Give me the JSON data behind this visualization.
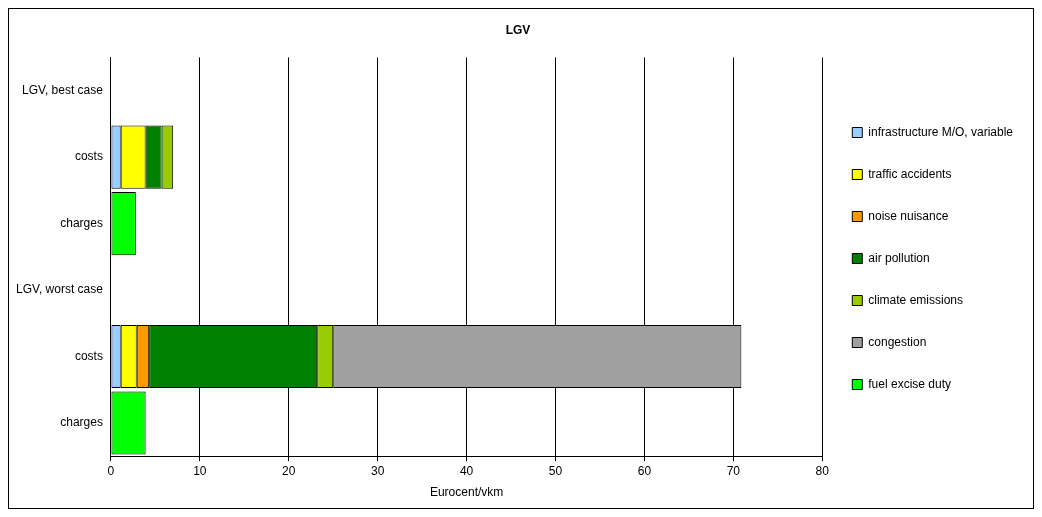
{
  "chart_data": {
    "type": "bar",
    "orientation": "horizontal",
    "stacked": true,
    "title": "LGV",
    "xlabel": "Eurocent/vkm",
    "categories": [
      "LGV, best case",
      "costs",
      "charges",
      "LGV, worst case",
      "costs",
      "charges"
    ],
    "series": [
      {
        "name": "infrastructure M/O, variable",
        "color": "#99ccff",
        "values": [
          null,
          1.1,
          null,
          null,
          1.1,
          null
        ]
      },
      {
        "name": "traffic accidents",
        "color": "#ffff00",
        "values": [
          null,
          2.8,
          null,
          null,
          1.8,
          null
        ]
      },
      {
        "name": "noise nuisance",
        "color": "#ff9900",
        "values": [
          null,
          0,
          null,
          null,
          1.4,
          null
        ]
      },
      {
        "name": "air pollution",
        "color": "#008000",
        "values": [
          null,
          1.8,
          null,
          null,
          18.9,
          null
        ]
      },
      {
        "name": "climate emissions",
        "color": "#99cc00",
        "values": [
          null,
          1.3,
          null,
          null,
          1.8,
          null
        ]
      },
      {
        "name": "congestion",
        "color": "#a0a0a0",
        "values": [
          null,
          null,
          null,
          null,
          45.9,
          null
        ]
      },
      {
        "name": "fuel excise duty",
        "color": "#00ff00",
        "values": [
          null,
          null,
          2.8,
          null,
          null,
          3.9
        ]
      }
    ],
    "xlim": [
      0,
      80
    ],
    "xticks": [
      0,
      10,
      20,
      30,
      40,
      50,
      60,
      70,
      80
    ],
    "grid": "x",
    "legend": "right"
  }
}
